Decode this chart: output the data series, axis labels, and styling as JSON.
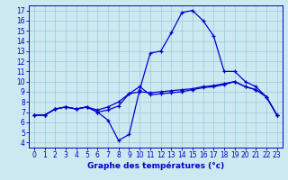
{
  "xlabel": "Graphe des températures (°c)",
  "bg_color": "#cce8f0",
  "grid_color": "#99ccd9",
  "line_color": "#0000cc",
  "spine_color": "#0000cc",
  "xlim": [
    -0.5,
    23.5
  ],
  "ylim": [
    3.5,
    17.5
  ],
  "yticks": [
    4,
    5,
    6,
    7,
    8,
    9,
    10,
    11,
    12,
    13,
    14,
    15,
    16,
    17
  ],
  "xticks": [
    0,
    1,
    2,
    3,
    4,
    5,
    6,
    7,
    8,
    9,
    10,
    11,
    12,
    13,
    14,
    15,
    16,
    17,
    18,
    19,
    20,
    21,
    22,
    23
  ],
  "line1_x": [
    0,
    1,
    2,
    3,
    4,
    5,
    6,
    7,
    8,
    9,
    10,
    11,
    12,
    13,
    14,
    15,
    16,
    17,
    18,
    19,
    20,
    21,
    22,
    23
  ],
  "line1_y": [
    6.7,
    6.7,
    7.3,
    7.5,
    7.3,
    7.5,
    7.0,
    7.2,
    7.6,
    8.8,
    9.5,
    8.7,
    8.8,
    8.9,
    9.0,
    9.2,
    9.4,
    9.5,
    9.7,
    10.0,
    9.5,
    9.2,
    8.5,
    6.7
  ],
  "line2_x": [
    0,
    1,
    2,
    3,
    4,
    5,
    6,
    7,
    8,
    9,
    10,
    11,
    12,
    13,
    14,
    15,
    16,
    17,
    18,
    19,
    20,
    21,
    22,
    23
  ],
  "line2_y": [
    6.7,
    6.7,
    7.3,
    7.5,
    7.3,
    7.5,
    7.0,
    6.2,
    4.2,
    4.8,
    9.2,
    12.8,
    13.0,
    14.8,
    16.8,
    17.0,
    16.0,
    14.5,
    11.0,
    11.0,
    10.0,
    9.5,
    8.5,
    6.7
  ],
  "line3_x": [
    0,
    1,
    2,
    3,
    4,
    5,
    6,
    7,
    8,
    9,
    10,
    11,
    12,
    13,
    14,
    15,
    16,
    17,
    18,
    19,
    20,
    21,
    22,
    23
  ],
  "line3_y": [
    6.7,
    6.7,
    7.3,
    7.5,
    7.3,
    7.5,
    7.2,
    7.5,
    8.0,
    8.8,
    9.0,
    8.9,
    9.0,
    9.1,
    9.2,
    9.3,
    9.5,
    9.6,
    9.8,
    10.0,
    9.5,
    9.2,
    8.5,
    6.7
  ],
  "tick_fontsize": 5.5,
  "xlabel_fontsize": 6.5,
  "xlabel_fontweight": "bold"
}
